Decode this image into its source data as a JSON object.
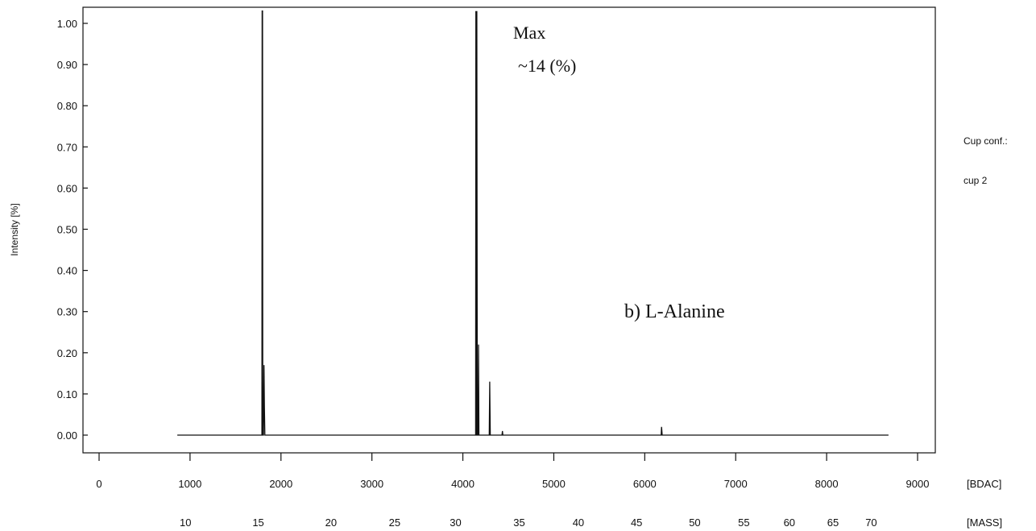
{
  "chart_data": {
    "type": "line",
    "ylabel": "Intensity [%]",
    "ylim": [
      0,
      1.0
    ],
    "y_ticks": [
      "0.00",
      "0.10",
      "0.20",
      "0.30",
      "0.40",
      "0.50",
      "0.60",
      "0.70",
      "0.80",
      "0.90",
      "1.00"
    ],
    "x_axis_primary": {
      "unit_label": "[BDAC]",
      "range": [
        0,
        9000
      ],
      "ticks": [
        {
          "value": 0,
          "label": "0"
        },
        {
          "value": 1000,
          "label": "1000"
        },
        {
          "value": 2000,
          "label": "2000"
        },
        {
          "value": 3000,
          "label": "3000"
        },
        {
          "value": 4000,
          "label": "4000"
        },
        {
          "value": 5000,
          "label": "5000"
        },
        {
          "value": 6000,
          "label": "6000"
        },
        {
          "value": 7000,
          "label": "7000"
        },
        {
          "value": 8000,
          "label": "8000"
        },
        {
          "value": 9000,
          "label": "9000"
        }
      ]
    },
    "x_axis_secondary": {
      "unit_label": "[MASS]",
      "ticks": [
        {
          "bdac": 950,
          "label": "10"
        },
        {
          "bdac": 1750,
          "label": "15"
        },
        {
          "bdac": 2550,
          "label": "20"
        },
        {
          "bdac": 3250,
          "label": "25"
        },
        {
          "bdac": 3920,
          "label": "30"
        },
        {
          "bdac": 4620,
          "label": "35"
        },
        {
          "bdac": 5270,
          "label": "40"
        },
        {
          "bdac": 5910,
          "label": "45"
        },
        {
          "bdac": 6550,
          "label": "50"
        },
        {
          "bdac": 7090,
          "label": "55"
        },
        {
          "bdac": 7590,
          "label": "60"
        },
        {
          "bdac": 8070,
          "label": "65"
        },
        {
          "bdac": 8490,
          "label": "70"
        }
      ]
    },
    "series": [
      {
        "points": [
          [
            860,
            0.0
          ],
          [
            1790,
            0.0
          ],
          [
            1793,
            1.03
          ],
          [
            1797,
            1.03
          ],
          [
            1800,
            0.0
          ],
          [
            1808,
            0.0
          ],
          [
            1813,
            0.17
          ],
          [
            1818,
            0.07
          ],
          [
            1823,
            0.0
          ],
          [
            4140,
            0.0
          ],
          [
            4143,
            1.03
          ],
          [
            4148,
            0.0
          ],
          [
            4151,
            0.0
          ],
          [
            4154,
            1.03
          ],
          [
            4159,
            0.0
          ],
          [
            4168,
            0.0
          ],
          [
            4172,
            0.22
          ],
          [
            4177,
            0.0
          ],
          [
            4290,
            0.0
          ],
          [
            4295,
            0.13
          ],
          [
            4302,
            0.0
          ],
          [
            4430,
            0.0
          ],
          [
            4435,
            0.01
          ],
          [
            4440,
            0.0
          ],
          [
            6180,
            0.0
          ],
          [
            6185,
            0.02
          ],
          [
            6192,
            0.0
          ],
          [
            8680,
            0.0
          ]
        ]
      }
    ],
    "annotations": {
      "max_label": "Max",
      "max_value": "~14 (%)",
      "sample_label": "b) L-Alanine"
    },
    "side_info": {
      "cup_conf_label": "Cup conf.:",
      "cup_value": "cup 2"
    },
    "grid": false,
    "legend": "none"
  }
}
